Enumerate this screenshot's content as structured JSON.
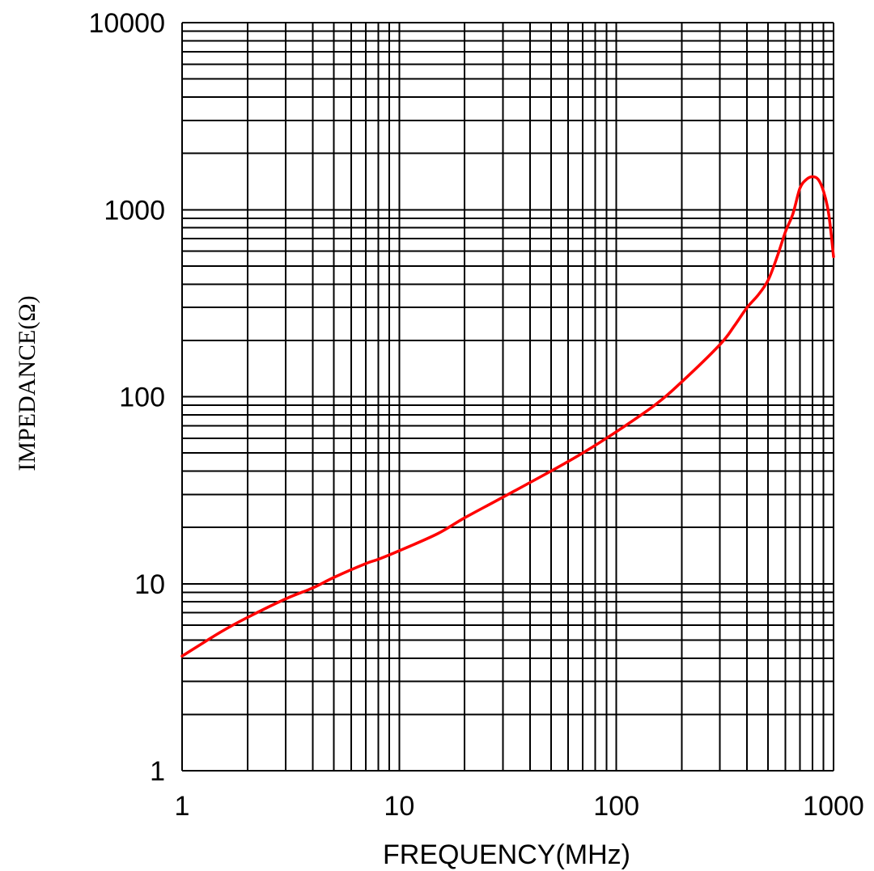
{
  "chart_data": {
    "type": "line",
    "xlabel": "FREQUENCY(MHz)",
    "ylabel": "IMPEDANCE(Ω)",
    "x_scale": "log",
    "y_scale": "log",
    "xlim": [
      1,
      1000
    ],
    "ylim": [
      1,
      10000
    ],
    "x_ticks": [
      "1",
      "10",
      "100",
      "1000"
    ],
    "y_ticks": [
      "1",
      "10",
      "100",
      "1000",
      "10000"
    ],
    "grid": true,
    "series": [
      {
        "color": "#ff0000",
        "x": [
          1,
          1.5,
          2,
          3,
          4,
          5,
          7,
          8,
          10,
          15,
          20,
          30,
          50,
          70,
          100,
          150,
          200,
          300,
          350,
          400,
          450,
          500,
          550,
          600,
          650,
          700,
          750,
          800,
          850,
          900,
          950,
          1000
        ],
        "y": [
          4.1,
          5.5,
          6.6,
          8.3,
          9.5,
          10.8,
          12.8,
          13.5,
          15,
          18.5,
          22.5,
          29,
          40,
          50,
          65,
          90,
          120,
          190,
          240,
          300,
          350,
          420,
          560,
          760,
          950,
          1300,
          1450,
          1500,
          1450,
          1250,
          950,
          560
        ]
      }
    ]
  }
}
